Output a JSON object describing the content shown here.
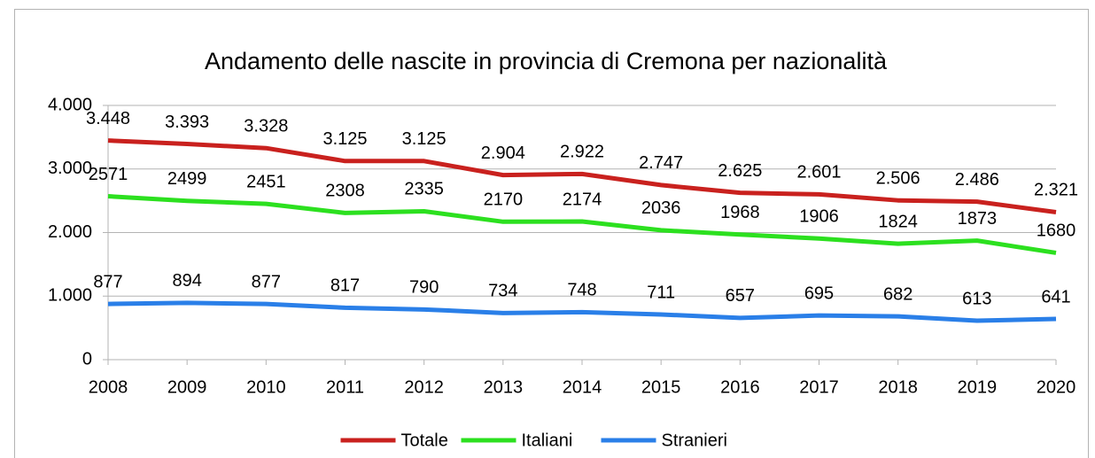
{
  "chart_data": {
    "type": "line",
    "title": "Andamento delle nascite in provincia di Cremona per nazionalità",
    "categories": [
      "2008",
      "2009",
      "2010",
      "2011",
      "2012",
      "2013",
      "2014",
      "2015",
      "2016",
      "2017",
      "2018",
      "2019",
      "2020"
    ],
    "series": [
      {
        "name": "Totale",
        "color": "#c9211e",
        "values": [
          3448,
          3393,
          3328,
          3125,
          3125,
          2904,
          2922,
          2747,
          2625,
          2601,
          2506,
          2486,
          2321
        ],
        "value_labels": [
          "3.448",
          "3.393",
          "3.328",
          "3.125",
          "3.125",
          "2.904",
          "2.922",
          "2.747",
          "2.625",
          "2.601",
          "2.506",
          "2.486",
          "2.321"
        ]
      },
      {
        "name": "Italiani",
        "color": "#2ce01f",
        "values": [
          2571,
          2499,
          2451,
          2308,
          2335,
          2170,
          2174,
          2036,
          1968,
          1906,
          1824,
          1873,
          1680
        ]
      },
      {
        "name": "Stranieri",
        "color": "#2a7fe8",
        "values": [
          877,
          894,
          877,
          817,
          790,
          734,
          748,
          711,
          657,
          695,
          682,
          613,
          641
        ]
      }
    ],
    "ylim": [
      0,
      4000
    ],
    "yticks": [
      0,
      {
        "value": 1000,
        "label": "1.000"
      },
      {
        "value": 2000,
        "label": "2.000"
      },
      {
        "value": 3000,
        "label": "3.000"
      },
      {
        "value": 4000,
        "label": "4.000"
      }
    ],
    "grid": true,
    "legend": "bottom"
  }
}
